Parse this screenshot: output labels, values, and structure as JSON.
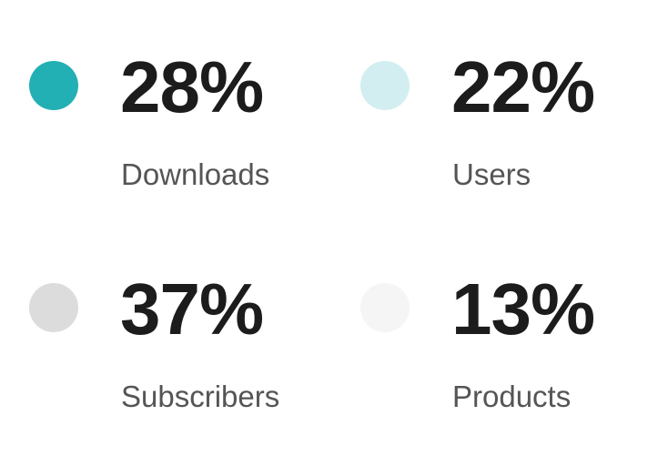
{
  "stats": [
    {
      "value": "28%",
      "label": "Downloads",
      "color": "#23b0b4",
      "icon": "circle-dot-icon"
    },
    {
      "value": "22%",
      "label": "Users",
      "color": "#d3eef0",
      "icon": "circle-dot-icon"
    },
    {
      "value": "37%",
      "label": "Subscribers",
      "color": "#dcdcdc",
      "icon": "circle-dot-icon"
    },
    {
      "value": "13%",
      "label": "Products",
      "color": "#f5f5f5",
      "icon": "circle-dot-icon"
    }
  ]
}
